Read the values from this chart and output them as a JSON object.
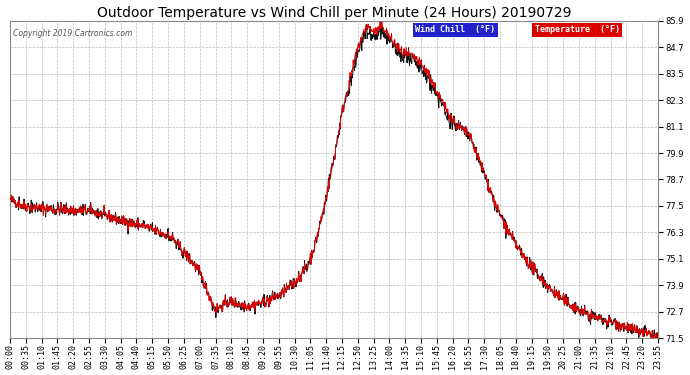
{
  "title": "Outdoor Temperature vs Wind Chill per Minute (24 Hours) 20190729",
  "copyright_text": "Copyright 2019 Cartronics.com",
  "ylim": [
    71.5,
    85.9
  ],
  "yticks": [
    71.5,
    72.7,
    73.9,
    75.1,
    76.3,
    77.5,
    78.7,
    79.9,
    81.1,
    82.3,
    83.5,
    84.7,
    85.9
  ],
  "bg_color": "#ffffff",
  "grid_color": "#bbbbbb",
  "temp_color": "#dd0000",
  "wind_chill_color": "#111111",
  "title_fontsize": 10,
  "tick_fontsize": 6,
  "x_tick_labels": [
    "00:00",
    "00:35",
    "01:10",
    "01:45",
    "02:20",
    "02:55",
    "03:30",
    "04:05",
    "04:40",
    "05:15",
    "05:50",
    "06:25",
    "07:00",
    "07:35",
    "08:10",
    "08:45",
    "09:20",
    "09:55",
    "10:30",
    "11:05",
    "11:40",
    "12:15",
    "12:50",
    "13:25",
    "14:00",
    "14:35",
    "15:10",
    "15:45",
    "16:20",
    "16:55",
    "17:30",
    "18:05",
    "18:40",
    "19:15",
    "19:50",
    "20:25",
    "21:00",
    "21:35",
    "22:10",
    "22:45",
    "23:20",
    "23:55"
  ],
  "num_points": 1440
}
